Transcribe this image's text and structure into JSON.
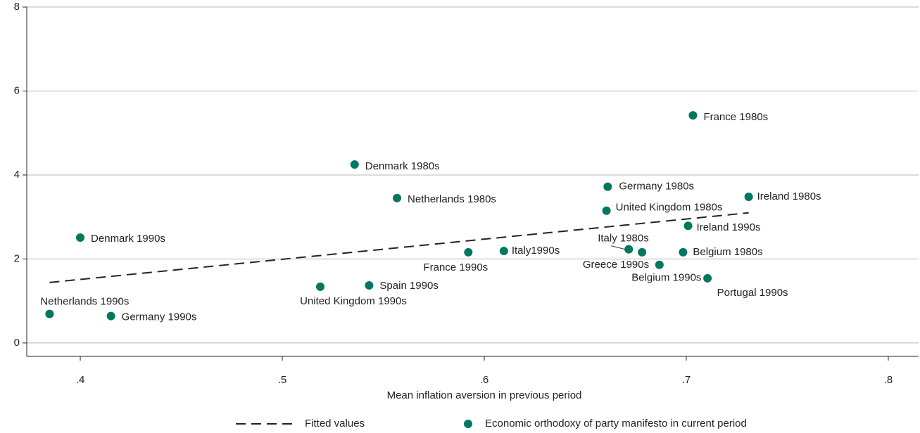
{
  "chart_data": {
    "type": "scatter",
    "xlabel": "Mean inflation aversion in previous period",
    "xlim": [
      0.3735,
      0.815
    ],
    "ylim": [
      -0.32,
      8
    ],
    "xticks": [
      {
        "value": 0.4,
        "label": ".4"
      },
      {
        "value": 0.5,
        "label": ".5"
      },
      {
        "value": 0.6,
        "label": ".6"
      },
      {
        "value": 0.7,
        "label": ".7"
      },
      {
        "value": 0.8,
        "label": ".8"
      }
    ],
    "yticks": [
      0,
      2,
      4,
      6,
      8
    ],
    "grid": true,
    "legend": "bottom",
    "series": [
      {
        "name": "Fitted values",
        "type": "line",
        "color": "#222222",
        "x": [
          0.3848,
          0.7309
        ],
        "values": [
          1.44,
          3.1
        ]
      },
      {
        "name": "Economic orthodoxy of party manifesto in current period",
        "type": "scatter",
        "color": "#00785f",
        "labels": [
          "Netherlands 1990s",
          "Germany 1990s",
          "Denmark 1990s",
          "Denmark 1980s",
          "Netherlands 1980s",
          "United Kingdom 1990s",
          "Spain 1990s",
          "France 1990s",
          "Italy1990s",
          "Italy 1980s",
          "Greece 1990s",
          "Belgium 1990s",
          "Belgium 1980s",
          "Portugal 1990s",
          "Ireland 1990s",
          "Ireland 1980s",
          "United Kingdom 1980s",
          "Germany 1980s",
          "France 1980s"
        ],
        "x": [
          0.3848,
          0.4152,
          0.4,
          0.5358,
          0.5568,
          0.5188,
          0.543,
          0.5921,
          0.6097,
          0.6715,
          0.6781,
          0.6867,
          0.6984,
          0.7105,
          0.7009,
          0.7309,
          0.6605,
          0.6611,
          0.7033
        ],
        "values": [
          0.69,
          0.64,
          2.51,
          4.25,
          3.45,
          1.34,
          1.37,
          2.16,
          2.19,
          2.23,
          2.16,
          1.86,
          2.16,
          1.54,
          2.79,
          3.48,
          3.15,
          3.72,
          5.42
        ]
      }
    ]
  }
}
